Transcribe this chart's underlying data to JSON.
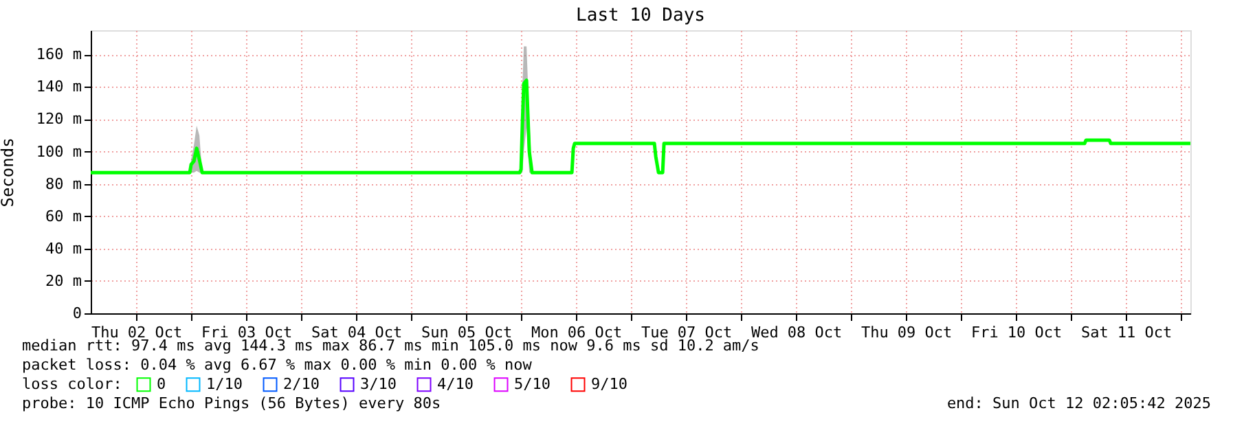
{
  "chart_data": {
    "type": "line",
    "title": "Last 10 Days",
    "ylabel": "Seconds",
    "x": [
      "2025-10-02T02:05",
      "2025-10-02T23:42",
      "2025-10-03T00:00",
      "2025-10-03T00:36",
      "2025-10-03T01:12",
      "2025-10-03T01:48",
      "2025-10-03T02:24",
      "2025-10-05T23:42",
      "2025-10-06T00:00",
      "2025-10-06T00:18",
      "2025-10-06T00:36",
      "2025-10-06T01:12",
      "2025-10-06T01:48",
      "2025-10-06T02:24",
      "2025-10-06T11:06",
      "2025-10-06T11:24",
      "2025-10-06T11:42",
      "2025-10-07T05:06",
      "2025-10-07T05:24",
      "2025-10-07T06:00",
      "2025-10-07T06:54",
      "2025-10-07T07:12",
      "2025-10-11T03:00",
      "2025-10-11T03:18",
      "2025-10-11T08:24",
      "2025-10-11T08:42",
      "2025-10-12T02:05"
    ],
    "series": [
      {
        "name": "0",
        "color": "#00ff00",
        "values": [
          87,
          87,
          92,
          94,
          102,
          95,
          87,
          87,
          89,
          118,
          142,
          144,
          100,
          87,
          87,
          102,
          105,
          105,
          97,
          87,
          87,
          105,
          105,
          107,
          107,
          105,
          105
        ],
        "lower": [
          87,
          87,
          87,
          87,
          88,
          87,
          87,
          87,
          87,
          87,
          100,
          115,
          87,
          87,
          87,
          102,
          105,
          105,
          97,
          87,
          87,
          105,
          105,
          107,
          107,
          105,
          105
        ],
        "upper": [
          87,
          87,
          95,
          104,
          116,
          110,
          87,
          87,
          90,
          140,
          165,
          165,
          120,
          87,
          87,
          102,
          105,
          105,
          97,
          87,
          87,
          105,
          105,
          107,
          107,
          105,
          105
        ]
      },
      {
        "name": "1/10",
        "color": "#00b8ff",
        "values": [
          null,
          null,
          null,
          null,
          null,
          null,
          null,
          null,
          null,
          null,
          null,
          null,
          null,
          null,
          null,
          null,
          null,
          null,
          null,
          null,
          null,
          null,
          null,
          null,
          null,
          null,
          null
        ]
      },
      {
        "name": "2/10",
        "color": "#0059ff",
        "values": [
          null,
          null,
          null,
          null,
          null,
          null,
          null,
          null,
          null,
          null,
          null,
          null,
          null,
          null,
          null,
          null,
          null,
          null,
          null,
          null,
          null,
          null,
          null,
          null,
          null,
          null,
          null
        ]
      },
      {
        "name": "3/10",
        "color": "#5500ff",
        "values": [
          null,
          null,
          null,
          null,
          null,
          null,
          null,
          null,
          null,
          null,
          null,
          null,
          null,
          null,
          null,
          null,
          null,
          null,
          null,
          null,
          null,
          null,
          null,
          null,
          null,
          null,
          null
        ]
      },
      {
        "name": "4/10",
        "color": "#7e00ff",
        "values": [
          null,
          null,
          null,
          null,
          null,
          null,
          null,
          null,
          null,
          null,
          null,
          null,
          null,
          null,
          null,
          null,
          null,
          null,
          null,
          null,
          null,
          null,
          null,
          null,
          null,
          null,
          null
        ]
      },
      {
        "name": "5/10",
        "color": "#dd00ff",
        "values": [
          null,
          null,
          null,
          null,
          null,
          null,
          null,
          null,
          null,
          null,
          null,
          null,
          null,
          null,
          null,
          null,
          null,
          null,
          null,
          null,
          null,
          null,
          null,
          null,
          null,
          null,
          null
        ]
      },
      {
        "name": "9/10",
        "color": "#ff0000",
        "values": [
          null,
          null,
          null,
          null,
          null,
          null,
          null,
          null,
          null,
          null,
          null,
          null,
          null,
          null,
          null,
          null,
          null,
          null,
          null,
          null,
          null,
          null,
          null,
          null,
          null,
          null,
          null
        ]
      }
    ],
    "legend": "bottom",
    "legend_title": "loss color:",
    "xlim": [
      "2025-10-02T02:05",
      "2025-10-12T02:05"
    ],
    "xticks": [
      {
        "value": "2025-10-02T12:00",
        "label": "Thu 02 Oct"
      },
      {
        "value": "2025-10-03T00:00",
        "label": null
      },
      {
        "value": "2025-10-03T12:00",
        "label": "Fri 03 Oct"
      },
      {
        "value": "2025-10-04T00:00",
        "label": null
      },
      {
        "value": "2025-10-04T12:00",
        "label": "Sat 04 Oct"
      },
      {
        "value": "2025-10-05T00:00",
        "label": null
      },
      {
        "value": "2025-10-05T12:00",
        "label": "Sun 05 Oct"
      },
      {
        "value": "2025-10-06T00:00",
        "label": null
      },
      {
        "value": "2025-10-06T12:00",
        "label": "Mon 06 Oct"
      },
      {
        "value": "2025-10-07T00:00",
        "label": null
      },
      {
        "value": "2025-10-07T12:00",
        "label": "Tue 07 Oct"
      },
      {
        "value": "2025-10-08T00:00",
        "label": null
      },
      {
        "value": "2025-10-08T12:00",
        "label": "Wed 08 Oct"
      },
      {
        "value": "2025-10-09T00:00",
        "label": null
      },
      {
        "value": "2025-10-09T12:00",
        "label": "Thu 09 Oct"
      },
      {
        "value": "2025-10-10T00:00",
        "label": null
      },
      {
        "value": "2025-10-10T12:00",
        "label": "Fri 10 Oct"
      },
      {
        "value": "2025-10-11T00:00",
        "label": null
      },
      {
        "value": "2025-10-11T12:00",
        "label": "Sat 11 Oct"
      },
      {
        "value": "2025-10-12T00:00",
        "label": null
      }
    ],
    "ylim": [
      0,
      175
    ],
    "yticks": [
      0,
      {
        "value": 20,
        "label": "20 m"
      },
      {
        "value": 40,
        "label": "40 m"
      },
      {
        "value": 60,
        "label": "60 m"
      },
      {
        "value": 80,
        "label": "80 m"
      },
      {
        "value": 100,
        "label": "100 m"
      },
      {
        "value": 120,
        "label": "120 m"
      },
      {
        "value": 140,
        "label": "140 m"
      },
      {
        "value": 160,
        "label": "160 m"
      }
    ],
    "grid": true,
    "marker": "none",
    "line_style": "solid",
    "annotations": [
      "median rtt:  97.4 ms avg  144.3 ms max  86.7 ms min  105.0 ms now  9.6 ms sd  10.2   am/s",
      "packet loss: 0.04 % avg  6.67 % max  0.00 % min  0.00 % now",
      "probe:       10 ICMP Echo Pings (56 Bytes) every 80s",
      "end: Sun Oct 12 02:05:42 2025"
    ]
  }
}
